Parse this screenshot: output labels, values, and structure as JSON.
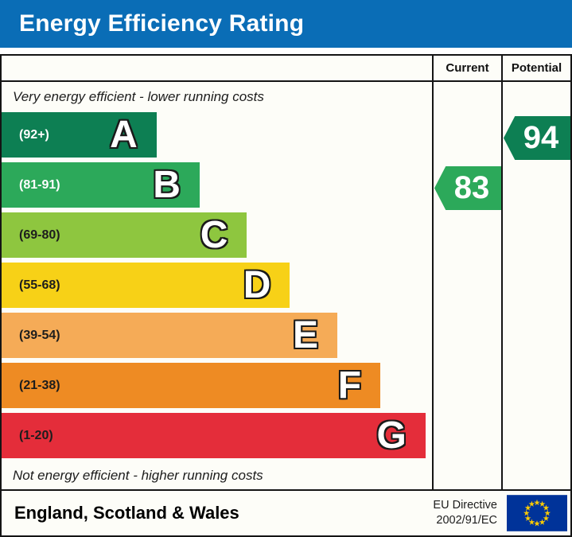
{
  "title": "Energy Efficiency Rating",
  "columns": {
    "current": "Current",
    "potential": "Potential"
  },
  "captions": {
    "top": "Very energy efficient - lower running costs",
    "bottom": "Not energy efficient - higher running costs"
  },
  "chart_data": {
    "type": "bar",
    "title": "Energy Efficiency Rating",
    "categories": [
      "A",
      "B",
      "C",
      "D",
      "E",
      "F",
      "G"
    ],
    "bands": [
      {
        "letter": "A",
        "range": "(92+)",
        "min": 92,
        "max": 100,
        "color": "#0d7f53",
        "label_color": "#ffffff",
        "width_pct": 36
      },
      {
        "letter": "B",
        "range": "(81-91)",
        "min": 81,
        "max": 91,
        "color": "#2ca95a",
        "label_color": "#ffffff",
        "width_pct": 46
      },
      {
        "letter": "C",
        "range": "(69-80)",
        "min": 69,
        "max": 80,
        "color": "#8ec63f",
        "label_color": "#1d1d1d",
        "width_pct": 57
      },
      {
        "letter": "D",
        "range": "(55-68)",
        "min": 55,
        "max": 68,
        "color": "#f7d117",
        "label_color": "#1d1d1d",
        "width_pct": 67
      },
      {
        "letter": "E",
        "range": "(39-54)",
        "min": 39,
        "max": 54,
        "color": "#f5ab57",
        "label_color": "#1d1d1d",
        "width_pct": 78
      },
      {
        "letter": "F",
        "range": "(21-38)",
        "min": 21,
        "max": 38,
        "color": "#ee8b23",
        "label_color": "#1d1d1d",
        "width_pct": 88
      },
      {
        "letter": "G",
        "range": "(1-20)",
        "min": 1,
        "max": 20,
        "color": "#e42d3a",
        "label_color": "#1d1d1d",
        "width_pct": 98.5
      }
    ],
    "current": {
      "value": 83,
      "band": "B"
    },
    "potential": {
      "value": 94,
      "band": "A"
    }
  },
  "footer": {
    "region": "England, Scotland & Wales",
    "directive_line1": "EU Directive",
    "directive_line2": "2002/91/EC"
  },
  "colors": {
    "title_bar": "#0a6db6",
    "panel_bg": "#fdfdf8",
    "border": "#141414",
    "flag_blue": "#003399",
    "flag_star": "#ffcc00"
  }
}
